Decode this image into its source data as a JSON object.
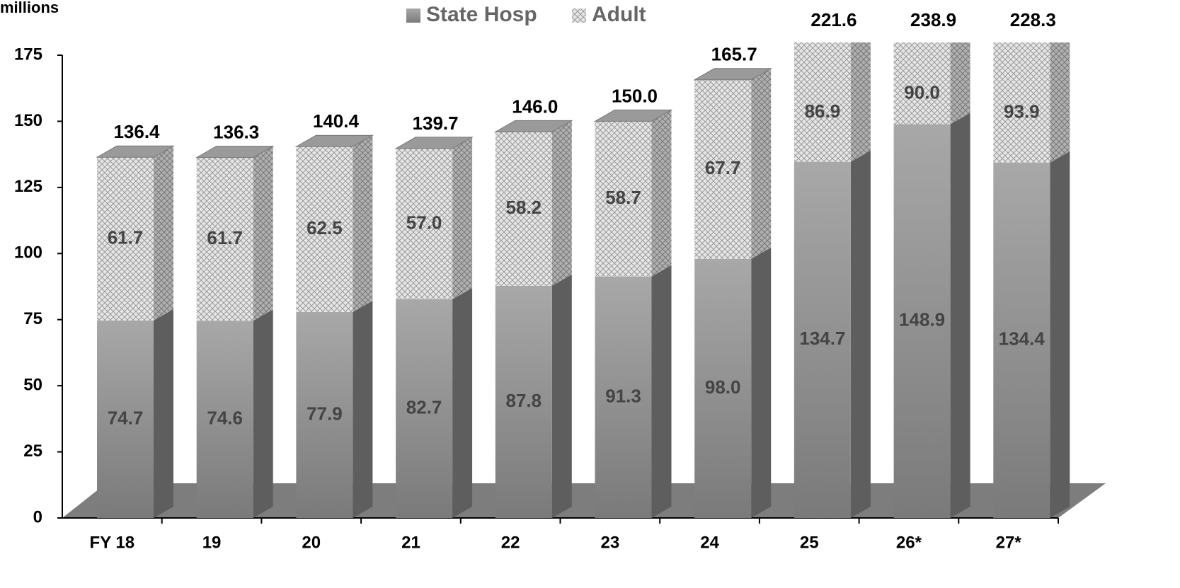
{
  "chart_data": {
    "type": "bar3d-stacked",
    "y_label": "millions",
    "categories": [
      "FY 18",
      "19",
      "20",
      "21",
      "22",
      "23",
      "24",
      "25",
      "26*",
      "27*"
    ],
    "series": [
      {
        "name": "State Hosp",
        "color": "#8a8a8a",
        "values": [
          74.7,
          74.6,
          77.9,
          82.7,
          87.8,
          91.3,
          98.0,
          134.7,
          148.9,
          134.4
        ]
      },
      {
        "name": "Adult",
        "color": "#d4d4d4",
        "pattern": "crosshatch",
        "values": [
          61.7,
          61.7,
          62.5,
          57.0,
          58.2,
          58.7,
          67.7,
          86.9,
          90.0,
          93.9
        ]
      }
    ],
    "totals": [
      {
        "value": 136.4,
        "label": "136.4"
      },
      {
        "value": 136.3,
        "label": "136.3"
      },
      {
        "value": 140.4,
        "label": "140.4"
      },
      {
        "value": 139.7,
        "label": "139.7"
      },
      {
        "value": 146.0,
        "label": "146.0"
      },
      {
        "value": 150.0,
        "label": "150.0"
      },
      {
        "value": 165.7,
        "label": "165.7"
      },
      {
        "value": 221.6,
        "label": "221.6"
      },
      {
        "value": 238.9,
        "label": "238.9"
      },
      {
        "value": 228.3,
        "label": "228.3"
      }
    ],
    "value_labels": [
      [
        "74.7",
        "74.6",
        "77.9",
        "82.7",
        "87.8",
        "91.3",
        "98.0",
        "134.7",
        "148.9",
        "134.4"
      ],
      [
        "61.7",
        "61.7",
        "62.5",
        "57.0",
        "58.2",
        "58.7",
        "67.7",
        "86.9",
        "90.0",
        "93.9"
      ]
    ],
    "ylim": [
      0,
      175
    ],
    "yticks": [
      0,
      25,
      50,
      75,
      100,
      125,
      150,
      175
    ],
    "grid": false,
    "legend": "top"
  }
}
